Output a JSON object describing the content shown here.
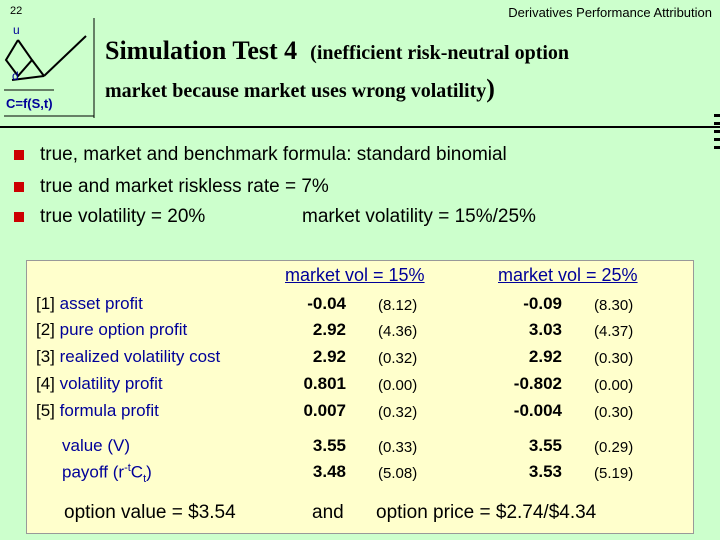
{
  "slide_number": "22",
  "header_right": "Derivatives  Performance Attribution",
  "logo": {
    "u": "u",
    "d": "d",
    "formula": "C=f(S,t)"
  },
  "title": {
    "main": "Simulation Test 4",
    "sub_open": "(inefficient risk-neutral option",
    "line2": "market because market uses wrong volatility",
    "sub_close": ")"
  },
  "bullets": [
    {
      "text": "true, market and benchmark formula: standard binomial"
    },
    {
      "text": "true and market riskless rate  =  7%"
    },
    {
      "left": "true volatility  =  20%",
      "right": "market volatility  =  15%/25%"
    }
  ],
  "table": {
    "col_heads": [
      "market vol = 15%",
      "market vol = 25%"
    ],
    "rows": [
      {
        "index": "[1]",
        "label": "asset profit",
        "v1": "-0.04",
        "s1": "(8.12)",
        "v2": "-0.09",
        "s2": "(8.30)"
      },
      {
        "index": "[2]",
        "label": "pure option profit",
        "v1": "2.92",
        "s1": "(4.36)",
        "v2": "3.03",
        "s2": "(4.37)"
      },
      {
        "index": "[3]",
        "label": "realized volatility cost",
        "v1": "2.92",
        "s1": "(0.32)",
        "v2": "2.92",
        "s2": "(0.30)"
      },
      {
        "index": "[4]",
        "label": "volatility profit",
        "v1": "0.801",
        "s1": "(0.00)",
        "v2": "-0.802",
        "s2": "(0.00)"
      },
      {
        "index": "[5]",
        "label": "formula profit",
        "v1": "0.007",
        "s1": "(0.32)",
        "v2": "-0.004",
        "s2": "(0.30)"
      }
    ],
    "value_row": {
      "label": "value (V)",
      "v1": "3.55",
      "s1": "(0.33)",
      "v2": "3.55",
      "s2": "(0.29)"
    },
    "payoff_row": {
      "label_pre": "payoff (r",
      "label_sup": "-t",
      "label_mid": "C",
      "label_sub": "t",
      "label_post": ")",
      "v1": "3.48",
      "s1": "(5.08)",
      "v2": "3.53",
      "s2": "(5.19)"
    }
  },
  "footer": {
    "left": "option value  =  $3.54",
    "mid": "and",
    "right": "option price  =  $2.74/$4.34"
  },
  "colors": {
    "background": "#ccffcc",
    "table_bg": "#ffffcc",
    "label_blue": "#000099",
    "bullet_red": "#cc0000"
  }
}
